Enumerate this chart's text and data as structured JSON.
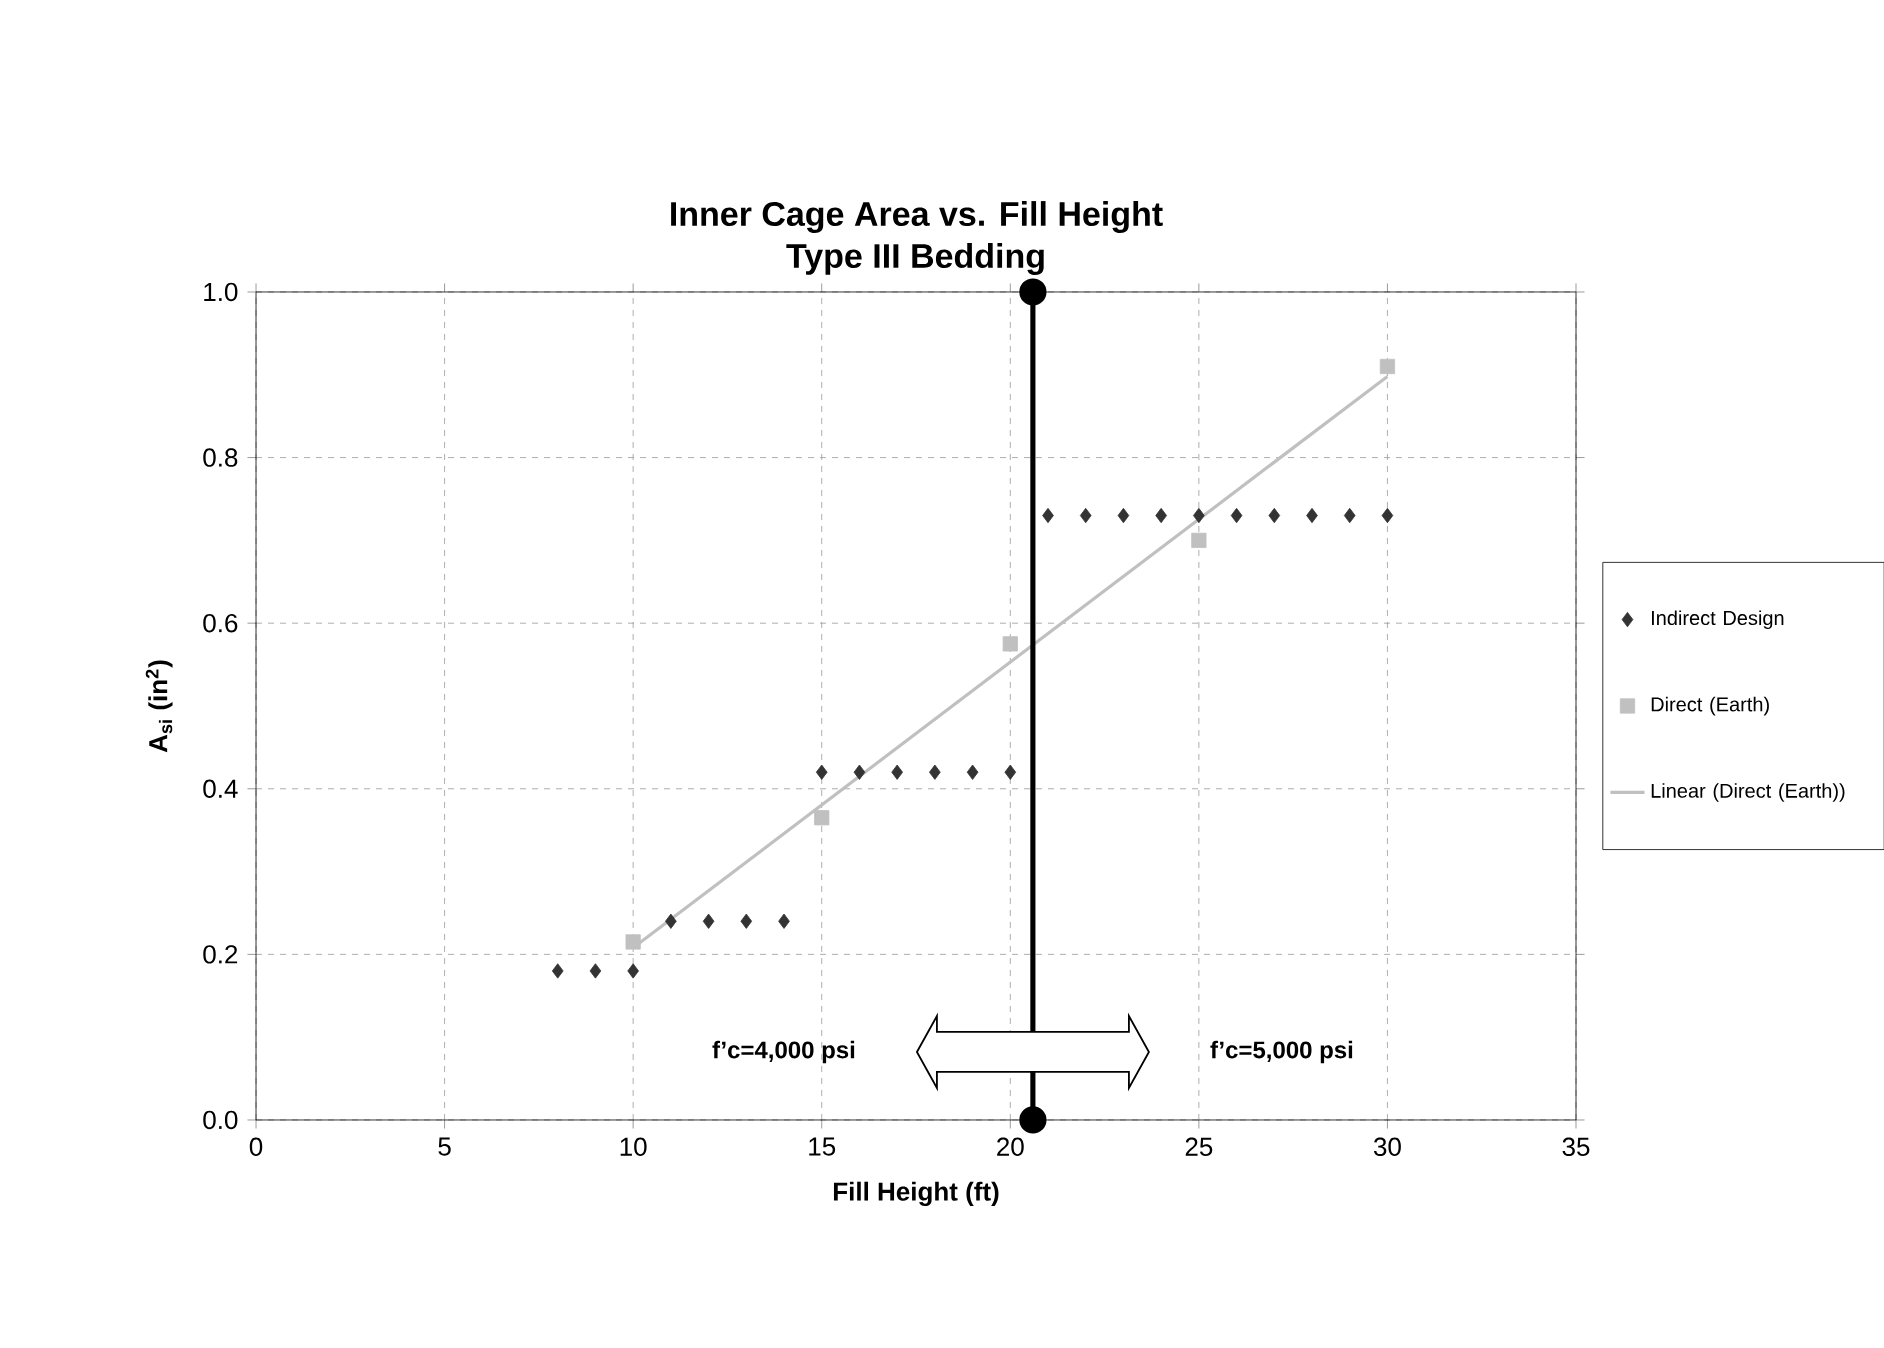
{
  "chart_data": {
    "type": "scatter",
    "title": "Inner Cage Area vs. Fill Height",
    "subtitle": "Type III Bedding",
    "xlabel": "Fill Height (ft)",
    "ylabel": "A$_{si}$ (in$^{2}$)",
    "xlim": [
      0,
      35
    ],
    "xticks": [
      0,
      5,
      10,
      15,
      20,
      25,
      30,
      35
    ],
    "ylim": [
      0,
      1
    ],
    "yticks": [
      {
        "value": 0,
        "label": "0.0"
      },
      {
        "value": 0.2,
        "label": "0.2"
      },
      {
        "value": 0.4,
        "label": "0.4"
      },
      {
        "value": 0.6,
        "label": "0.6"
      },
      {
        "value": 0.8,
        "label": "0.8"
      },
      {
        "value": 1,
        "label": "1.0"
      }
    ],
    "grid": true,
    "legend": "right",
    "series": [
      {
        "name": "Indirect Design",
        "marker": "diamond",
        "color": "#333333",
        "x": [
          8,
          9,
          10,
          11,
          12,
          13,
          14,
          15,
          16,
          17,
          18,
          19,
          20,
          21,
          22,
          23,
          24,
          25,
          26,
          27,
          28,
          29,
          30
        ],
        "values": [
          0.18,
          0.18,
          0.18,
          0.24,
          0.24,
          0.24,
          0.24,
          0.42,
          0.42,
          0.42,
          0.42,
          0.42,
          0.42,
          0.73,
          0.73,
          0.73,
          0.73,
          0.73,
          0.73,
          0.73,
          0.73,
          0.73,
          0.73
        ]
      },
      {
        "name": "Direct (Earth)",
        "marker": "square",
        "color": "#c0c0c0",
        "x": [
          10,
          15,
          20,
          25,
          30
        ],
        "values": [
          0.215,
          0.365,
          0.575,
          0.7,
          0.91
        ]
      },
      {
        "name": "Linear (Direct (Earth))",
        "type": "line",
        "marker": "none",
        "color": "#c0c0c0",
        "x": [
          10,
          30
        ],
        "values": [
          0.208,
          0.898
        ]
      },
      {
        "type": "line",
        "marker": "circle",
        "color": "#000000",
        "x": [
          20.6,
          20.6
        ],
        "values": [
          0,
          1
        ]
      }
    ],
    "annotations": [
      "f’c=4,000 psi",
      "f’c=5,000 psi"
    ]
  }
}
